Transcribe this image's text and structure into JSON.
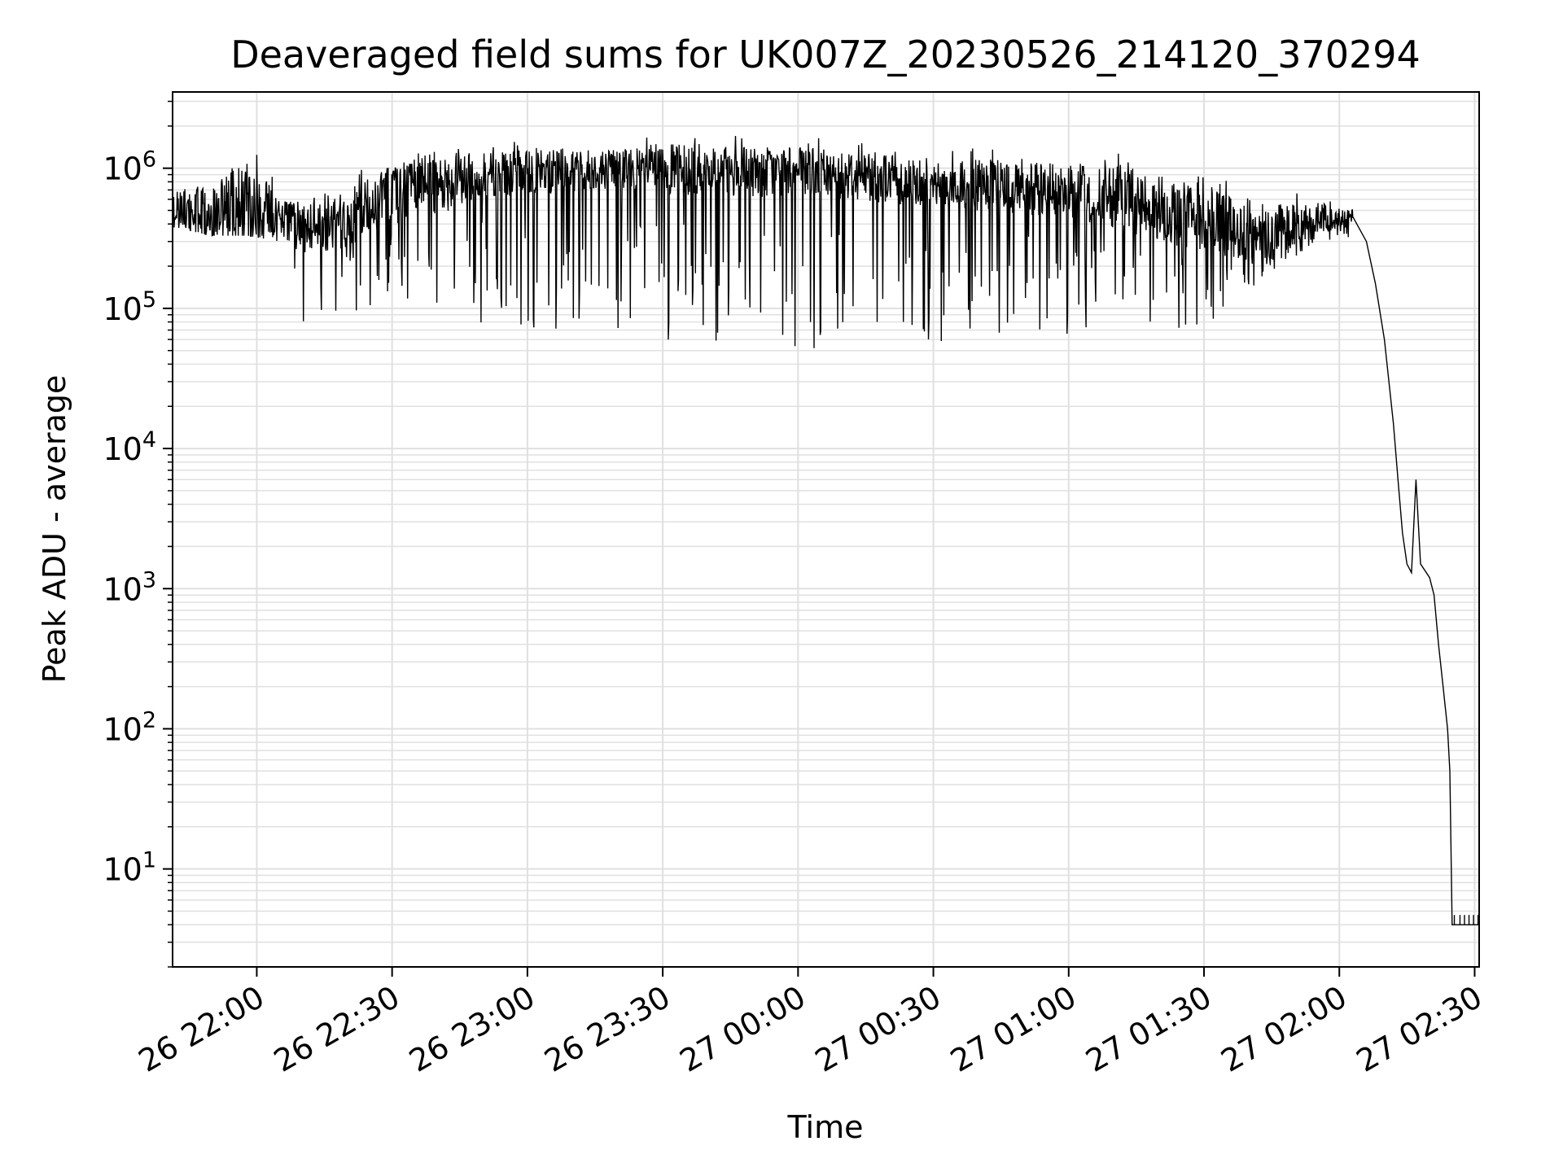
{
  "chart_data": {
    "type": "line",
    "title": "Deaveraged field sums for UK007Z_20230526_214120_370294",
    "xlabel": "Time",
    "ylabel": "Peak ADU - average",
    "y_scale": "log",
    "ylim": [
      2,
      3500000
    ],
    "xlim": [
      "2023-05-26 21:41:20",
      "2023-05-27 02:31:00"
    ],
    "grid": true,
    "line_color": "#000000",
    "grid_color": "#e0e0e0",
    "x_ticks": [
      {
        "label": "26 22:00",
        "time": "2023-05-26 22:00"
      },
      {
        "label": "26 22:30",
        "time": "2023-05-26 22:30"
      },
      {
        "label": "26 23:00",
        "time": "2023-05-26 23:00"
      },
      {
        "label": "26 23:30",
        "time": "2023-05-26 23:30"
      },
      {
        "label": "27 00:00",
        "time": "2023-05-27 00:00"
      },
      {
        "label": "27 00:30",
        "time": "2023-05-27 00:30"
      },
      {
        "label": "27 01:00",
        "time": "2023-05-27 01:00"
      },
      {
        "label": "27 01:30",
        "time": "2023-05-27 01:30"
      },
      {
        "label": "27 02:00",
        "time": "2023-05-27 02:00"
      },
      {
        "label": "27 02:30",
        "time": "2023-05-27 02:30"
      }
    ],
    "y_ticks": [
      {
        "base": "10",
        "exp": "1",
        "value": 10
      },
      {
        "base": "10",
        "exp": "2",
        "value": 100
      },
      {
        "base": "10",
        "exp": "3",
        "value": 1000
      },
      {
        "base": "10",
        "exp": "4",
        "value": 10000
      },
      {
        "base": "10",
        "exp": "5",
        "value": 100000
      },
      {
        "base": "10",
        "exp": "6",
        "value": 1000000
      }
    ],
    "envelope": [
      {
        "time": "2023-05-26 21:41:20",
        "median": 500000,
        "min": 380000,
        "max": 800000
      },
      {
        "time": "2023-05-26 21:50",
        "median": 450000,
        "min": 330000,
        "max": 900000
      },
      {
        "time": "2023-05-26 21:58",
        "median": 500000,
        "min": 330000,
        "max": 1900000
      },
      {
        "time": "2023-05-26 22:05",
        "median": 450000,
        "min": 300000,
        "max": 700000
      },
      {
        "time": "2023-05-26 22:10",
        "median": 350000,
        "min": 50000,
        "max": 700000
      },
      {
        "time": "2023-05-26 22:18",
        "median": 400000,
        "min": 100000,
        "max": 900000
      },
      {
        "time": "2023-05-26 22:25",
        "median": 500000,
        "min": 60000,
        "max": 1000000
      },
      {
        "time": "2023-05-26 22:30",
        "median": 650000,
        "min": 150000,
        "max": 1300000
      },
      {
        "time": "2023-05-26 22:40",
        "median": 750000,
        "min": 60000,
        "max": 1700000
      },
      {
        "time": "2023-05-26 22:50",
        "median": 850000,
        "min": 80000,
        "max": 1500000
      },
      {
        "time": "2023-05-26 23:00",
        "median": 900000,
        "min": 70000,
        "max": 1600000
      },
      {
        "time": "2023-05-26 23:15",
        "median": 950000,
        "min": 60000,
        "max": 1600000
      },
      {
        "time": "2023-05-26 23:30",
        "median": 950000,
        "min": 60000,
        "max": 1800000
      },
      {
        "time": "2023-05-26 23:45",
        "median": 900000,
        "min": 45000,
        "max": 1700000
      },
      {
        "time": "2023-05-27 00:00",
        "median": 900000,
        "min": 45000,
        "max": 1700000
      },
      {
        "time": "2023-05-27 00:15",
        "median": 850000,
        "min": 70000,
        "max": 1600000
      },
      {
        "time": "2023-05-27 00:30",
        "median": 750000,
        "min": 45000,
        "max": 1400000
      },
      {
        "time": "2023-05-27 00:45",
        "median": 700000,
        "min": 60000,
        "max": 1400000
      },
      {
        "time": "2023-05-27 01:00",
        "median": 650000,
        "min": 60000,
        "max": 1300000
      },
      {
        "time": "2023-05-27 01:15",
        "median": 550000,
        "min": 70000,
        "max": 1300000
      },
      {
        "time": "2023-05-27 01:30",
        "median": 400000,
        "min": 70000,
        "max": 900000
      },
      {
        "time": "2023-05-27 01:45",
        "median": 320000,
        "min": 180000,
        "max": 700000
      },
      {
        "time": "2023-05-27 01:55",
        "median": 420000,
        "min": 300000,
        "max": 650000
      },
      {
        "time": "2023-05-27 02:03",
        "median": 450000,
        "min": 320000,
        "max": 520000
      }
    ],
    "falloff": [
      {
        "time": "2023-05-27 02:03",
        "value": 450000
      },
      {
        "time": "2023-05-27 02:06",
        "value": 300000
      },
      {
        "time": "2023-05-27 02:08",
        "value": 150000
      },
      {
        "time": "2023-05-27 02:10",
        "value": 60000
      },
      {
        "time": "2023-05-27 02:12",
        "value": 15000
      },
      {
        "time": "2023-05-27 02:13",
        "value": 6000
      },
      {
        "time": "2023-05-27 02:14",
        "value": 2500
      },
      {
        "time": "2023-05-27 02:15",
        "value": 1500
      },
      {
        "time": "2023-05-27 02:16",
        "value": 1300
      },
      {
        "time": "2023-05-27 02:17",
        "value": 6000
      },
      {
        "time": "2023-05-27 02:18",
        "value": 1500
      },
      {
        "time": "2023-05-27 02:20",
        "value": 1200
      },
      {
        "time": "2023-05-27 02:21",
        "value": 900
      },
      {
        "time": "2023-05-27 02:22",
        "value": 400
      },
      {
        "time": "2023-05-27 02:23",
        "value": 200
      },
      {
        "time": "2023-05-27 02:24",
        "value": 100
      },
      {
        "time": "2023-05-27 02:24:30",
        "value": 50
      },
      {
        "time": "2023-05-27 02:25",
        "value": 4
      },
      {
        "time": "2023-05-27 02:31",
        "value": 4
      }
    ]
  }
}
